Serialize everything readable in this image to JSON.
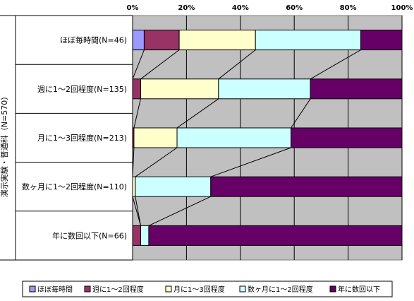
{
  "chart_data": {
    "type": "bar",
    "stacked": true,
    "orientation": "horizontal",
    "percent_scale": true,
    "group_label": "演示実験・普通科（N=570）",
    "categories": [
      "ほぼ毎時間(N=46)",
      "週に1～2回程度(N=135)",
      "月に1～3回程度(N=213)",
      "数ヶ月に1～2回程度(N=110)",
      "年に数回以下(N=66)"
    ],
    "series": [
      {
        "name": "ほぼ毎時間",
        "color": "#9999ff",
        "values": [
          4.3,
          0.0,
          0.0,
          0.0,
          0.0
        ]
      },
      {
        "name": "週に1～2回程度",
        "color": "#993366",
        "values": [
          13.0,
          3.0,
          0.5,
          0.0,
          3.0
        ]
      },
      {
        "name": "月に1～3回程度",
        "color": "#ffffcc",
        "values": [
          28.3,
          28.9,
          16.0,
          1.0,
          0.0
        ]
      },
      {
        "name": "数ヶ月に1～2回程度",
        "color": "#ccffff",
        "values": [
          39.1,
          34.1,
          42.3,
          28.0,
          3.0
        ]
      },
      {
        "name": "年に数回以下",
        "color": "#660066",
        "values": [
          15.3,
          34.0,
          41.2,
          71.0,
          94.0
        ]
      }
    ],
    "x_ticks": [
      "0%",
      "20%",
      "40%",
      "60%",
      "80%",
      "100%"
    ],
    "xlim": [
      0,
      100
    ],
    "grid": true,
    "legend_position": "bottom",
    "colors": {
      "plot_bg": "#c0c0c0",
      "grid": "#000000"
    }
  }
}
